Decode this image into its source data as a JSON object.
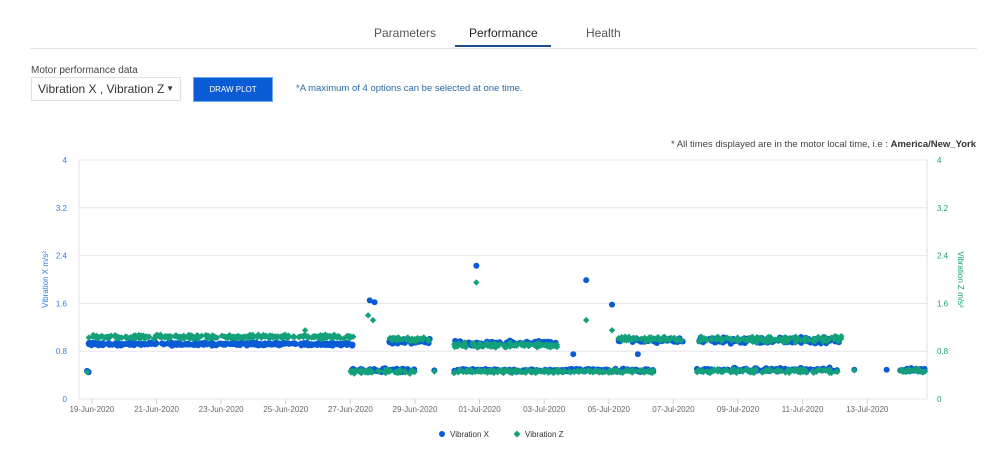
{
  "tabs": [
    {
      "label": "Parameters"
    },
    {
      "label": "Performance",
      "active": true
    },
    {
      "label": "Health"
    }
  ],
  "controls": {
    "field_label": "Motor performance data",
    "selected_value": "Vibration X , Vibration Z",
    "draw_button": "DRAW PLOT",
    "hint": "*A maximum of 4 options can be selected at one time."
  },
  "timezone_note": {
    "prefix": "* All times displayed are in the motor local time, i.e : ",
    "zone": "America/New_York"
  },
  "colors": {
    "x_series": "#0a5bd6",
    "z_series": "#13a07b"
  },
  "chart_data": {
    "type": "scatter",
    "x_unit": "days since 19-Jun-2020",
    "xlim": [
      -0.4,
      25.85
    ],
    "x_ticks": [
      {
        "day": 0,
        "label": "19-Jun-2020"
      },
      {
        "day": 2,
        "label": "21-Jun-2020"
      },
      {
        "day": 4,
        "label": "23-Jun-2020"
      },
      {
        "day": 6,
        "label": "25-Jun-2020"
      },
      {
        "day": 8,
        "label": "27-Jun-2020"
      },
      {
        "day": 10,
        "label": "29-Jun-2020"
      },
      {
        "day": 12,
        "label": "01-Jul-2020"
      },
      {
        "day": 14,
        "label": "03-Jul-2020"
      },
      {
        "day": 16,
        "label": "05-Jul-2020"
      },
      {
        "day": 18,
        "label": "07-Jul-2020"
      },
      {
        "day": 20,
        "label": "09-Jul-2020"
      },
      {
        "day": 22,
        "label": "11-Jul-2020"
      },
      {
        "day": 24,
        "label": "13-Jul-2020"
      }
    ],
    "ylim": [
      0,
      4
    ],
    "y_ticks": [
      "0",
      "0.8",
      "1.6",
      "2.4",
      "3.2",
      "4"
    ],
    "ylabel_left": "Vibration X m/s²",
    "ylabel_right": "Vibration Z m/s²",
    "grid": true,
    "legend_position": "bottom-center",
    "series": [
      {
        "name": "Vibration X",
        "marker": "circle",
        "bands": [
          [
            -0.1,
            8.1,
            0.92,
            0.03,
            260
          ],
          [
            9.2,
            10.5,
            0.97,
            0.05,
            40
          ],
          [
            11.2,
            14.4,
            0.93,
            0.05,
            100
          ],
          [
            16.3,
            18.3,
            0.98,
            0.05,
            60
          ],
          [
            18.8,
            23.2,
            0.98,
            0.06,
            140
          ],
          [
            8.0,
            10.0,
            0.48,
            0.04,
            60
          ],
          [
            11.2,
            17.4,
            0.48,
            0.03,
            180
          ],
          [
            18.7,
            23.1,
            0.49,
            0.04,
            100
          ],
          [
            25.0,
            25.8,
            0.49,
            0.04,
            25
          ]
        ],
        "points": [
          [
            -0.15,
            0.47
          ],
          [
            -0.1,
            0.45
          ],
          [
            8.6,
            1.65
          ],
          [
            8.75,
            1.62
          ],
          [
            11.9,
            2.23
          ],
          [
            15.3,
            1.99
          ],
          [
            14.9,
            0.75
          ],
          [
            16.1,
            1.58
          ],
          [
            16.9,
            0.75
          ],
          [
            10.6,
            0.48
          ],
          [
            23.6,
            0.49
          ],
          [
            24.6,
            0.49
          ]
        ]
      },
      {
        "name": "Vibration Z",
        "marker": "diamond",
        "bands": [
          [
            -0.1,
            8.1,
            1.04,
            0.04,
            260
          ],
          [
            9.2,
            10.5,
            1.0,
            0.05,
            40
          ],
          [
            11.2,
            14.4,
            0.9,
            0.05,
            100
          ],
          [
            16.3,
            18.3,
            1.0,
            0.05,
            60
          ],
          [
            18.8,
            23.2,
            1.0,
            0.06,
            140
          ],
          [
            8.0,
            10.0,
            0.46,
            0.04,
            60
          ],
          [
            11.2,
            17.4,
            0.46,
            0.03,
            180
          ],
          [
            18.7,
            23.1,
            0.47,
            0.04,
            100
          ],
          [
            25.0,
            25.8,
            0.47,
            0.04,
            25
          ]
        ],
        "points": [
          [
            -0.15,
            0.45
          ],
          [
            8.55,
            1.4
          ],
          [
            8.7,
            1.32
          ],
          [
            11.9,
            1.95
          ],
          [
            15.3,
            1.32
          ],
          [
            16.1,
            1.15
          ],
          [
            6.6,
            1.15
          ],
          [
            10.6,
            0.46
          ],
          [
            23.6,
            0.48
          ]
        ]
      }
    ]
  }
}
